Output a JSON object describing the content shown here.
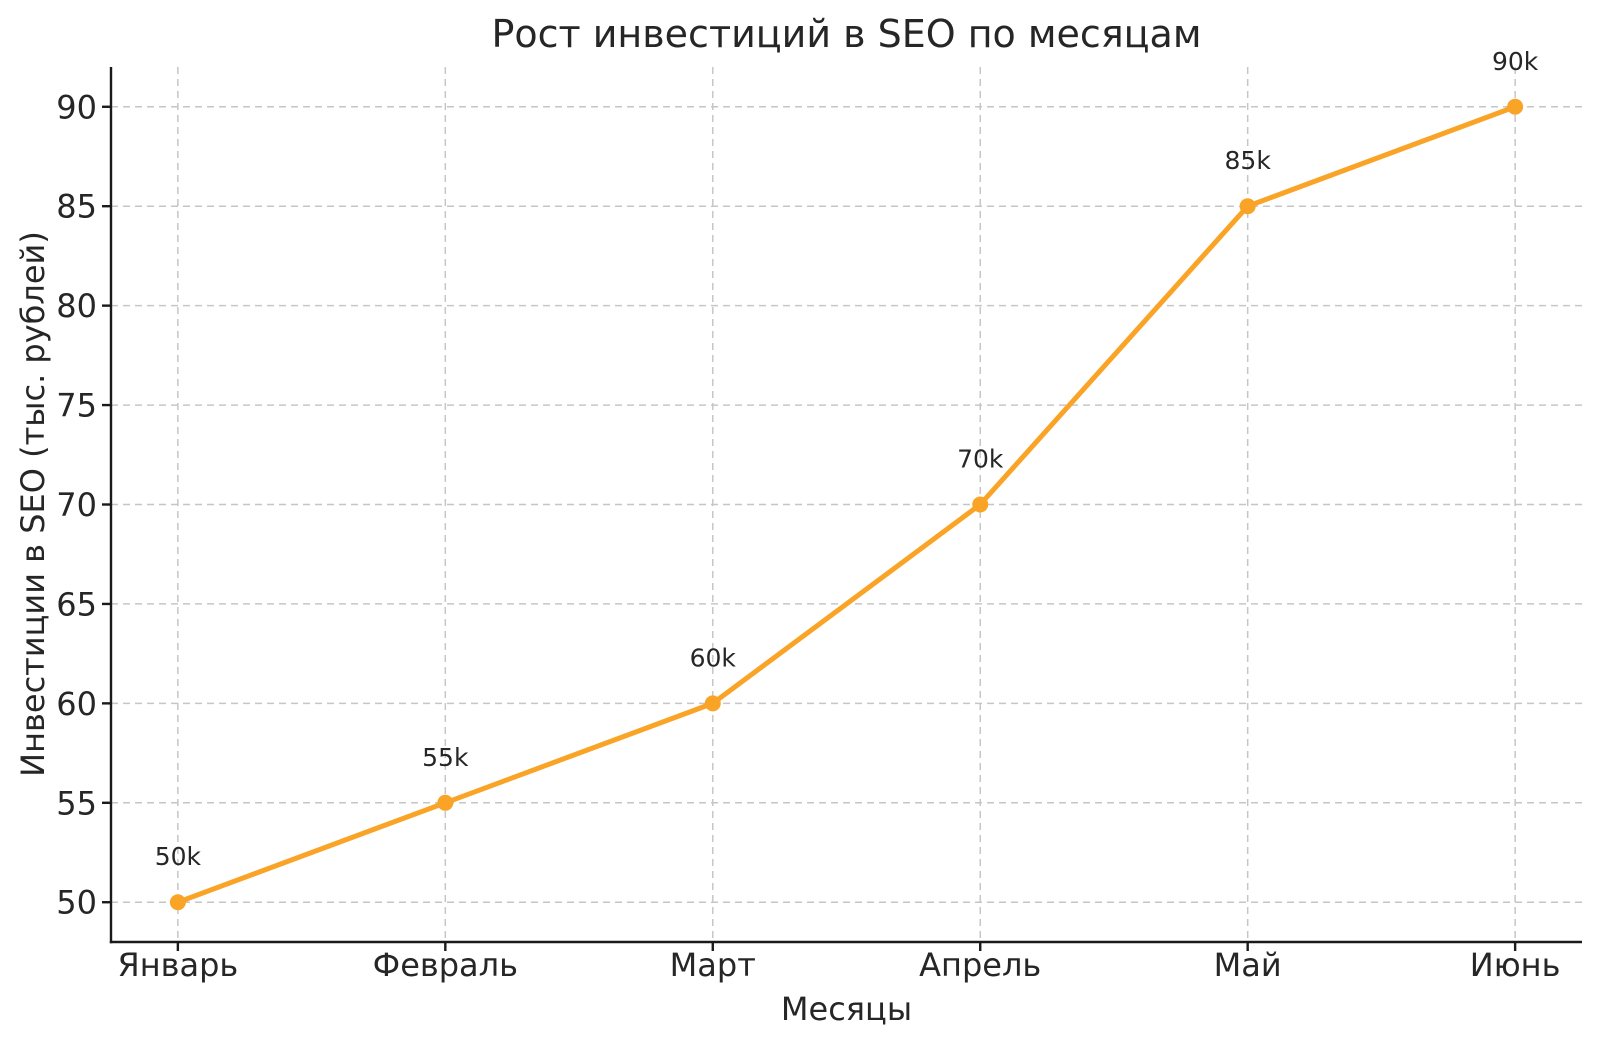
{
  "chart_data": {
    "type": "line",
    "title": "Рост инвестиций в SEO по месяцам",
    "xlabel": "Месяцы",
    "ylabel": "Инвестиции в SEO (тыс. рублей)",
    "categories": [
      "Январь",
      "Февраль",
      "Март",
      "Апрель",
      "Май",
      "Июнь"
    ],
    "series": [
      {
        "name": "Инвестиции в SEO",
        "values": [
          50,
          55,
          60,
          70,
          85,
          90
        ],
        "point_labels": [
          "50k",
          "55k",
          "60k",
          "70k",
          "85k",
          "90k"
        ]
      }
    ],
    "yticks": [
      50,
      55,
      60,
      65,
      70,
      75,
      80,
      85,
      90
    ],
    "ylim": [
      48,
      92
    ],
    "x_margin": 0.25,
    "grid": true,
    "grid_style": "dashed",
    "legend": false,
    "colors": {
      "line": "#FAA427",
      "marker": "#FAA427",
      "grid": "#c6c6c6",
      "axis": "#1a1a1a",
      "text": "#262626",
      "background": "#ffffff"
    }
  }
}
